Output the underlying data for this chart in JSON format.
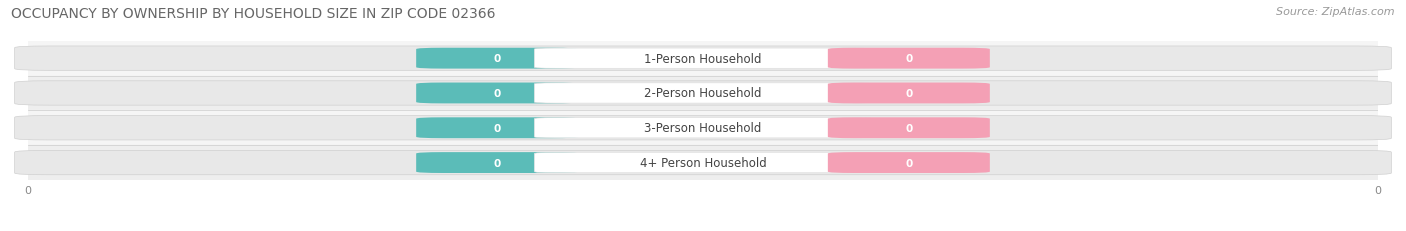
{
  "title": "OCCUPANCY BY OWNERSHIP BY HOUSEHOLD SIZE IN ZIP CODE 02366",
  "source": "Source: ZipAtlas.com",
  "categories": [
    "1-Person Household",
    "2-Person Household",
    "3-Person Household",
    "4+ Person Household"
  ],
  "owner_values": [
    0,
    0,
    0,
    0
  ],
  "renter_values": [
    0,
    0,
    0,
    0
  ],
  "owner_color": "#5bbcb8",
  "renter_color": "#f4a0b5",
  "row_bg_even": "#f5f5f5",
  "row_bg_odd": "#eeeeee",
  "bar_bg_color": "#e8e8e8",
  "label_bg_color": "#ffffff",
  "title_fontsize": 10,
  "source_fontsize": 8,
  "label_fontsize": 8.5,
  "value_fontsize": 7.5,
  "tick_fontsize": 8,
  "background_color": "#ffffff",
  "xlim_left": -1.0,
  "xlim_right": 1.0
}
